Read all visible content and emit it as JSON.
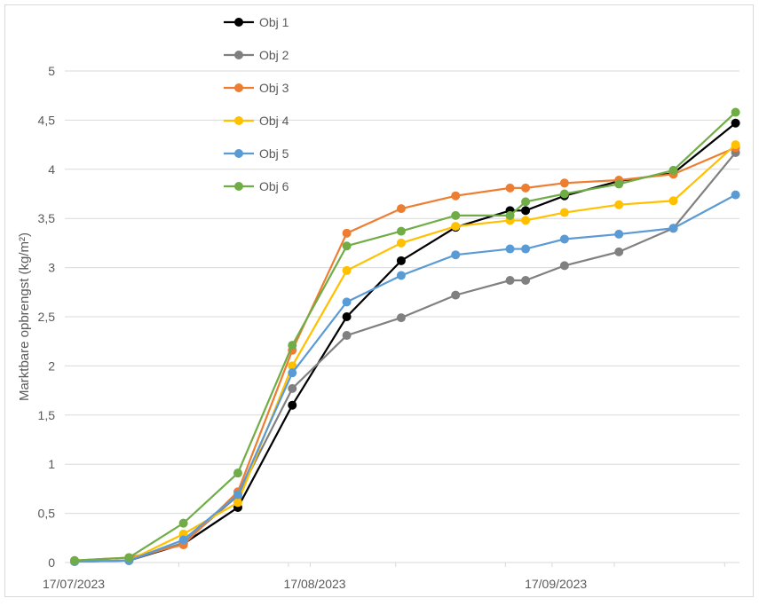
{
  "chart_data": {
    "type": "line",
    "title": "",
    "xlabel": "",
    "ylabel": "Marktbare opbrengst (kg/m²)",
    "ylim": [
      0,
      5
    ],
    "yticks": [
      "0",
      "0,5",
      "1",
      "1,5",
      "2",
      "2,5",
      "3",
      "3,5",
      "4",
      "4,5",
      "5"
    ],
    "ytick_values": [
      0,
      0.5,
      1,
      1.5,
      2,
      2.5,
      3,
      3.5,
      4,
      4.5,
      5
    ],
    "xtick_labels": [
      {
        "label": "17/07/2023",
        "day": 0
      },
      {
        "label": "17/08/2023",
        "day": 31
      },
      {
        "label": "17/09/2023",
        "day": 62
      }
    ],
    "x_days_since_17_07_2023": [
      0,
      7,
      14,
      21,
      28,
      35,
      42,
      49,
      56,
      58,
      63,
      70,
      77,
      85
    ],
    "grid": true,
    "legend_position": "top-left",
    "series": [
      {
        "name": "Obj 1",
        "color": "#000000",
        "values": [
          0.01,
          0.02,
          0.19,
          0.56,
          1.6,
          2.5,
          3.07,
          3.41,
          3.58,
          3.58,
          3.73,
          3.88,
          3.96,
          4.47
        ]
      },
      {
        "name": "Obj 2",
        "color": "#808080",
        "values": [
          0.01,
          0.02,
          0.2,
          0.68,
          1.77,
          2.31,
          2.49,
          2.72,
          2.87,
          2.87,
          3.02,
          3.16,
          3.4,
          4.17
        ]
      },
      {
        "name": "Obj 3",
        "color": "#ED7D31",
        "values": [
          0.02,
          0.05,
          0.18,
          0.72,
          2.16,
          3.35,
          3.6,
          3.73,
          3.81,
          3.81,
          3.86,
          3.89,
          3.95,
          4.22
        ]
      },
      {
        "name": "Obj 4",
        "color": "#FFC000",
        "values": [
          0.01,
          0.02,
          0.29,
          0.61,
          2.0,
          2.97,
          3.25,
          3.42,
          3.48,
          3.48,
          3.56,
          3.64,
          3.68,
          4.25
        ]
      },
      {
        "name": "Obj 5",
        "color": "#5B9BD5",
        "values": [
          0.01,
          0.02,
          0.23,
          0.69,
          1.93,
          2.65,
          2.92,
          3.13,
          3.19,
          3.19,
          3.29,
          3.34,
          3.4,
          3.74
        ]
      },
      {
        "name": "Obj 6",
        "color": "#70AD47",
        "values": [
          0.02,
          0.05,
          0.4,
          0.91,
          2.21,
          3.22,
          3.37,
          3.53,
          3.53,
          3.67,
          3.75,
          3.85,
          3.99,
          4.58
        ]
      }
    ]
  }
}
